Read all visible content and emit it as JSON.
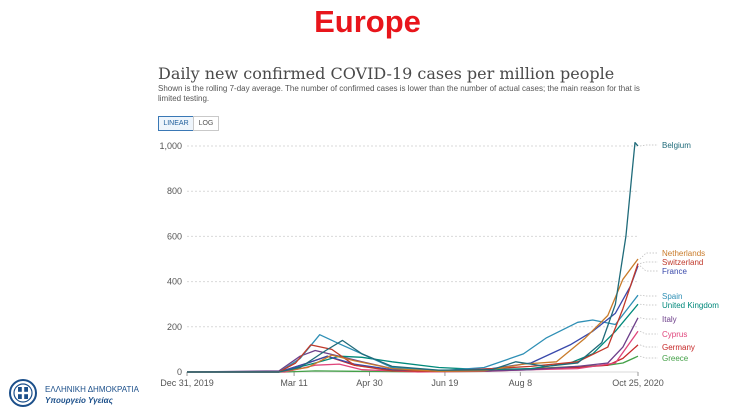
{
  "slide": {
    "title": "Europe"
  },
  "chart_header": {
    "title": "Daily new confirmed COVID-19 cases per million people",
    "subtitle": "Shown is the rolling 7-day average. The number of confirmed cases is lower than the number of actual cases; the main reason for that is limited testing.",
    "toggle_linear": "LINEAR",
    "toggle_log": "LOG"
  },
  "logo": {
    "line1": "ΕΛΛΗΝΙΚΗ ΔΗΜΟΚΡΑΤΙΑ",
    "line2": "Υπουργείο Υγείας"
  },
  "colors": {
    "title_red": "#e8151b",
    "grid": "#d9d9d9",
    "axis_text": "#555555"
  },
  "chart_data": {
    "type": "line",
    "title": "Daily new confirmed COVID-19 cases per million people",
    "x_start": "2019-12-31",
    "x_end": "2020-10-25",
    "x_ticks": [
      "Dec 31, 2019",
      "Mar 11",
      "Apr 30",
      "Jun 19",
      "Aug 8",
      "Oct 25, 2020"
    ],
    "y_ticks": [
      "0",
      "200",
      "400",
      "600",
      "800",
      "1,000"
    ],
    "ylim": [
      0,
      1000
    ],
    "grid": true,
    "series": [
      {
        "name": "Belgium",
        "color": "#1f6b7a",
        "points": [
          [
            "2020-03-01",
            0
          ],
          [
            "2020-03-15",
            20
          ],
          [
            "2020-04-01",
            95
          ],
          [
            "2020-04-12",
            140
          ],
          [
            "2020-04-25",
            80
          ],
          [
            "2020-05-15",
            25
          ],
          [
            "2020-06-15",
            8
          ],
          [
            "2020-07-20",
            10
          ],
          [
            "2020-08-05",
            45
          ],
          [
            "2020-08-25",
            25
          ],
          [
            "2020-09-15",
            40
          ],
          [
            "2020-10-01",
            130
          ],
          [
            "2020-10-10",
            300
          ],
          [
            "2020-10-17",
            600
          ],
          [
            "2020-10-21",
            880
          ],
          [
            "2020-10-23",
            1015
          ],
          [
            "2020-10-25",
            1000
          ]
        ]
      },
      {
        "name": "Netherlands",
        "color": "#c97b2a",
        "points": [
          [
            "2020-03-01",
            0
          ],
          [
            "2020-03-20",
            20
          ],
          [
            "2020-04-05",
            75
          ],
          [
            "2020-04-20",
            50
          ],
          [
            "2020-05-15",
            15
          ],
          [
            "2020-06-15",
            3
          ],
          [
            "2020-07-15",
            5
          ],
          [
            "2020-08-10",
            35
          ],
          [
            "2020-09-01",
            45
          ],
          [
            "2020-09-20",
            150
          ],
          [
            "2020-10-05",
            250
          ],
          [
            "2020-10-15",
            410
          ],
          [
            "2020-10-25",
            500
          ]
        ]
      },
      {
        "name": "Switzerland",
        "color": "#c0392b",
        "points": [
          [
            "2020-03-01",
            0
          ],
          [
            "2020-03-12",
            40
          ],
          [
            "2020-03-22",
            120
          ],
          [
            "2020-04-05",
            100
          ],
          [
            "2020-04-20",
            30
          ],
          [
            "2020-05-15",
            5
          ],
          [
            "2020-06-15",
            3
          ],
          [
            "2020-07-20",
            15
          ],
          [
            "2020-08-15",
            25
          ],
          [
            "2020-09-15",
            45
          ],
          [
            "2020-10-05",
            110
          ],
          [
            "2020-10-15",
            280
          ],
          [
            "2020-10-25",
            480
          ]
        ]
      },
      {
        "name": "France",
        "color": "#3949ab",
        "points": [
          [
            "2020-03-01",
            0
          ],
          [
            "2020-03-20",
            40
          ],
          [
            "2020-04-02",
            70
          ],
          [
            "2020-04-20",
            35
          ],
          [
            "2020-05-15",
            10
          ],
          [
            "2020-06-15",
            5
          ],
          [
            "2020-07-20",
            15
          ],
          [
            "2020-08-15",
            40
          ],
          [
            "2020-09-10",
            120
          ],
          [
            "2020-09-25",
            180
          ],
          [
            "2020-10-10",
            260
          ],
          [
            "2020-10-20",
            380
          ],
          [
            "2020-10-25",
            470
          ]
        ]
      },
      {
        "name": "Spain",
        "color": "#2e8fb5",
        "points": [
          [
            "2020-03-01",
            0
          ],
          [
            "2020-03-15",
            60
          ],
          [
            "2020-03-28",
            165
          ],
          [
            "2020-04-10",
            125
          ],
          [
            "2020-04-25",
            80
          ],
          [
            "2020-05-15",
            20
          ],
          [
            "2020-06-15",
            5
          ],
          [
            "2020-07-15",
            20
          ],
          [
            "2020-08-10",
            80
          ],
          [
            "2020-08-25",
            150
          ],
          [
            "2020-09-15",
            220
          ],
          [
            "2020-09-25",
            230
          ],
          [
            "2020-10-10",
            210
          ],
          [
            "2020-10-25",
            340
          ]
        ]
      },
      {
        "name": "United Kingdom",
        "color": "#00897b",
        "points": [
          [
            "2020-03-01",
            0
          ],
          [
            "2020-03-25",
            40
          ],
          [
            "2020-04-10",
            70
          ],
          [
            "2020-04-25",
            65
          ],
          [
            "2020-05-15",
            45
          ],
          [
            "2020-06-15",
            20
          ],
          [
            "2020-07-15",
            10
          ],
          [
            "2020-08-15",
            15
          ],
          [
            "2020-09-10",
            40
          ],
          [
            "2020-09-25",
            80
          ],
          [
            "2020-10-10",
            180
          ],
          [
            "2020-10-25",
            300
          ]
        ]
      },
      {
        "name": "Italy",
        "color": "#6d3f8a",
        "points": [
          [
            "2020-03-01",
            5
          ],
          [
            "2020-03-15",
            70
          ],
          [
            "2020-03-25",
            95
          ],
          [
            "2020-04-10",
            70
          ],
          [
            "2020-04-25",
            45
          ],
          [
            "2020-05-15",
            15
          ],
          [
            "2020-06-15",
            5
          ],
          [
            "2020-07-15",
            4
          ],
          [
            "2020-08-15",
            10
          ],
          [
            "2020-09-15",
            25
          ],
          [
            "2020-10-05",
            40
          ],
          [
            "2020-10-15",
            110
          ],
          [
            "2020-10-25",
            240
          ]
        ]
      },
      {
        "name": "Cyprus",
        "color": "#e0457b",
        "points": [
          [
            "2020-03-05",
            0
          ],
          [
            "2020-03-25",
            30
          ],
          [
            "2020-04-10",
            35
          ],
          [
            "2020-04-25",
            10
          ],
          [
            "2020-06-01",
            0
          ],
          [
            "2020-07-15",
            3
          ],
          [
            "2020-08-15",
            10
          ],
          [
            "2020-09-15",
            15
          ],
          [
            "2020-10-10",
            40
          ],
          [
            "2020-10-25",
            180
          ]
        ]
      },
      {
        "name": "Germany",
        "color": "#c62828",
        "points": [
          [
            "2020-03-01",
            0
          ],
          [
            "2020-03-20",
            40
          ],
          [
            "2020-04-02",
            70
          ],
          [
            "2020-04-20",
            30
          ],
          [
            "2020-05-15",
            8
          ],
          [
            "2020-06-15",
            5
          ],
          [
            "2020-07-15",
            5
          ],
          [
            "2020-08-15",
            15
          ],
          [
            "2020-09-15",
            20
          ],
          [
            "2020-10-05",
            30
          ],
          [
            "2020-10-15",
            60
          ],
          [
            "2020-10-25",
            120
          ]
        ]
      },
      {
        "name": "Greece",
        "color": "#43a047",
        "points": [
          [
            "2020-03-05",
            0
          ],
          [
            "2020-03-25",
            5
          ],
          [
            "2020-04-20",
            3
          ],
          [
            "2020-06-01",
            1
          ],
          [
            "2020-07-15",
            3
          ],
          [
            "2020-08-15",
            15
          ],
          [
            "2020-09-15",
            25
          ],
          [
            "2020-10-05",
            30
          ],
          [
            "2020-10-15",
            40
          ],
          [
            "2020-10-25",
            70
          ]
        ]
      }
    ]
  }
}
